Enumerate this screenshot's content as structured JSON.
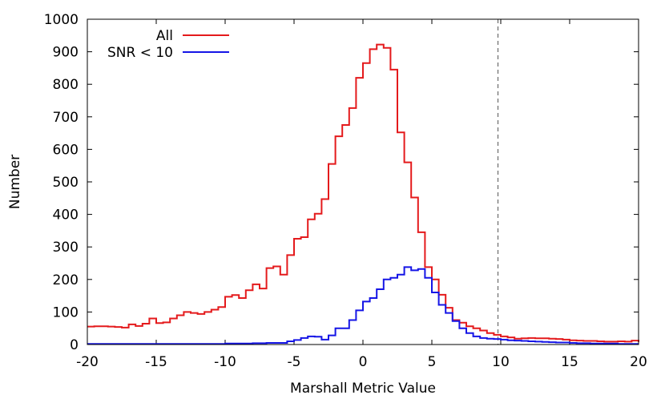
{
  "chart_data": {
    "type": "line",
    "step": true,
    "xlabel": "Marshall Metric Value",
    "ylabel": "Number",
    "xlim": [
      -20,
      20
    ],
    "ylim": [
      0,
      1000
    ],
    "xticks": [
      -20,
      -15,
      -10,
      -5,
      0,
      5,
      10,
      15,
      20
    ],
    "yticks": [
      0,
      100,
      200,
      300,
      400,
      500,
      600,
      700,
      800,
      900,
      1000
    ],
    "bin_width": 0.5,
    "bin_start": -20,
    "reference_line_x": 9.8,
    "legend_position": "top-left",
    "series": [
      {
        "name": "All",
        "color": "#e41a1c",
        "values": [
          55,
          56,
          56,
          55,
          54,
          52,
          62,
          57,
          64,
          80,
          66,
          68,
          80,
          90,
          100,
          97,
          94,
          100,
          107,
          115,
          147,
          152,
          143,
          167,
          185,
          172,
          235,
          240,
          215,
          275,
          325,
          330,
          385,
          402,
          447,
          555,
          640,
          675,
          727,
          820,
          865,
          908,
          922,
          912,
          845,
          652,
          560,
          452,
          345,
          238,
          200,
          153,
          113,
          75,
          67,
          56,
          50,
          43,
          35,
          30,
          25,
          22,
          18,
          19,
          20,
          19,
          19,
          18,
          17,
          15,
          13,
          12,
          11,
          11,
          10,
          9,
          9,
          10,
          9,
          12,
          8
        ]
      },
      {
        "name": "SNR < 10",
        "color": "#1515e6",
        "values": [
          2,
          2,
          2,
          2,
          2,
          2,
          2,
          2,
          2,
          2,
          2,
          2,
          2,
          2,
          2,
          2,
          2,
          2,
          2,
          2,
          3,
          3,
          3,
          3,
          4,
          4,
          5,
          5,
          5,
          10,
          14,
          20,
          25,
          24,
          15,
          28,
          50,
          50,
          75,
          105,
          132,
          143,
          170,
          200,
          205,
          215,
          238,
          228,
          232,
          205,
          160,
          122,
          97,
          72,
          50,
          35,
          25,
          20,
          18,
          17,
          15,
          13,
          12,
          11,
          10,
          9,
          8,
          7,
          6,
          6,
          5,
          4,
          4,
          3,
          3,
          3,
          3,
          2,
          2,
          2,
          2
        ]
      }
    ]
  }
}
